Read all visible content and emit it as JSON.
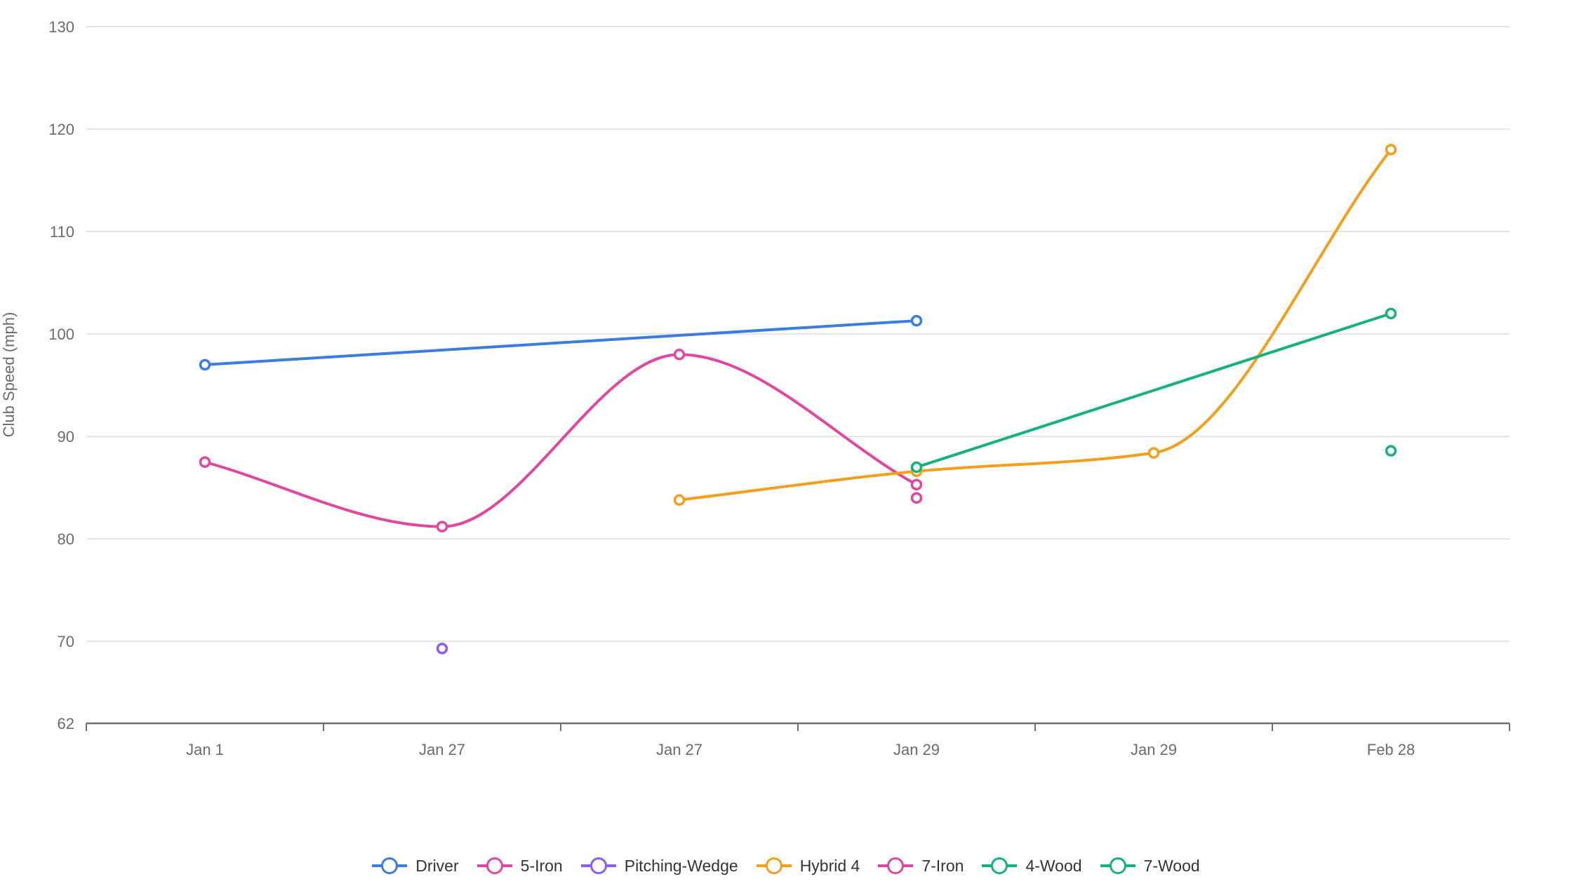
{
  "chart_data": {
    "type": "line",
    "title": "",
    "xlabel": "",
    "ylabel": "Club Speed (mph)",
    "ylim": [
      62,
      130
    ],
    "yticks": [
      62,
      70,
      80,
      90,
      100,
      110,
      120,
      130
    ],
    "categories": [
      "Jan 1",
      "Jan 27",
      "Jan 27",
      "Jan 29",
      "Jan 29",
      "Feb 28"
    ],
    "grid": true,
    "legend_position": "bottom",
    "series": [
      {
        "name": "Driver",
        "color": "#3b7ddd",
        "smooth": false,
        "values": [
          97.0,
          null,
          null,
          101.3,
          null,
          null
        ]
      },
      {
        "name": "5-Iron",
        "color": "#e0479e",
        "smooth": true,
        "values": [
          87.5,
          81.2,
          98.0,
          85.3,
          null,
          null
        ]
      },
      {
        "name": "Pitching-Wedge",
        "color": "#8b5cf6",
        "smooth": false,
        "values": [
          null,
          69.3,
          null,
          null,
          null,
          null
        ]
      },
      {
        "name": "Hybrid 4",
        "color": "#f0a01c",
        "smooth": true,
        "values": [
          null,
          null,
          83.8,
          86.6,
          88.4,
          118.0
        ]
      },
      {
        "name": "7-Iron",
        "color": "#e0479e",
        "smooth": false,
        "values": [
          null,
          null,
          null,
          84.0,
          null,
          null
        ]
      },
      {
        "name": "4-Wood",
        "color": "#16b17e",
        "smooth": false,
        "values": [
          null,
          null,
          null,
          87.0,
          null,
          102.0
        ]
      },
      {
        "name": "7-Wood",
        "color": "#16b17e",
        "smooth": false,
        "values": [
          null,
          null,
          null,
          null,
          null,
          88.6
        ]
      }
    ]
  }
}
